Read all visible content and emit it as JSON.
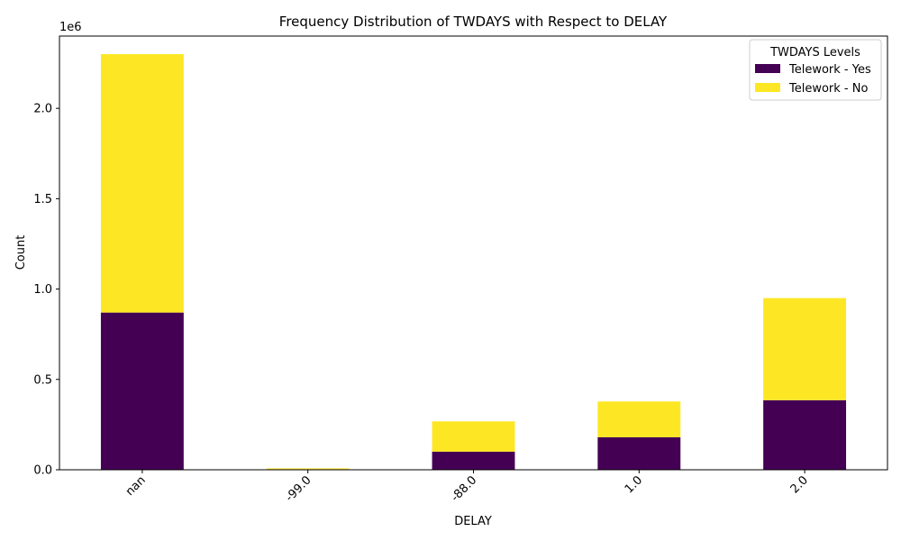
{
  "chart_data": {
    "type": "bar",
    "stacked": true,
    "title": "Frequency Distribution of TWDAYS with Respect to DELAY",
    "xlabel": "DELAY",
    "ylabel": "Count",
    "y_offset_label": "1e6",
    "categories": [
      "nan",
      "-99.0",
      "-88.0",
      "1.0",
      "2.0"
    ],
    "series": [
      {
        "name": "Telework - Yes",
        "color": "#440154",
        "values": [
          870000,
          3000,
          100000,
          180000,
          385000
        ]
      },
      {
        "name": "Telework - No",
        "color": "#fde725",
        "values": [
          1430000,
          5000,
          168000,
          198000,
          565000
        ]
      }
    ],
    "ylim": [
      0,
      2400000
    ],
    "y_ticks": [
      0,
      500000,
      1000000,
      1500000,
      2000000
    ],
    "y_tick_labels": [
      "0.0",
      "0.5",
      "1.0",
      "1.5",
      "2.0"
    ],
    "legend": {
      "title": "TWDAYS Levels",
      "position": "top-right"
    },
    "grid": false
  }
}
